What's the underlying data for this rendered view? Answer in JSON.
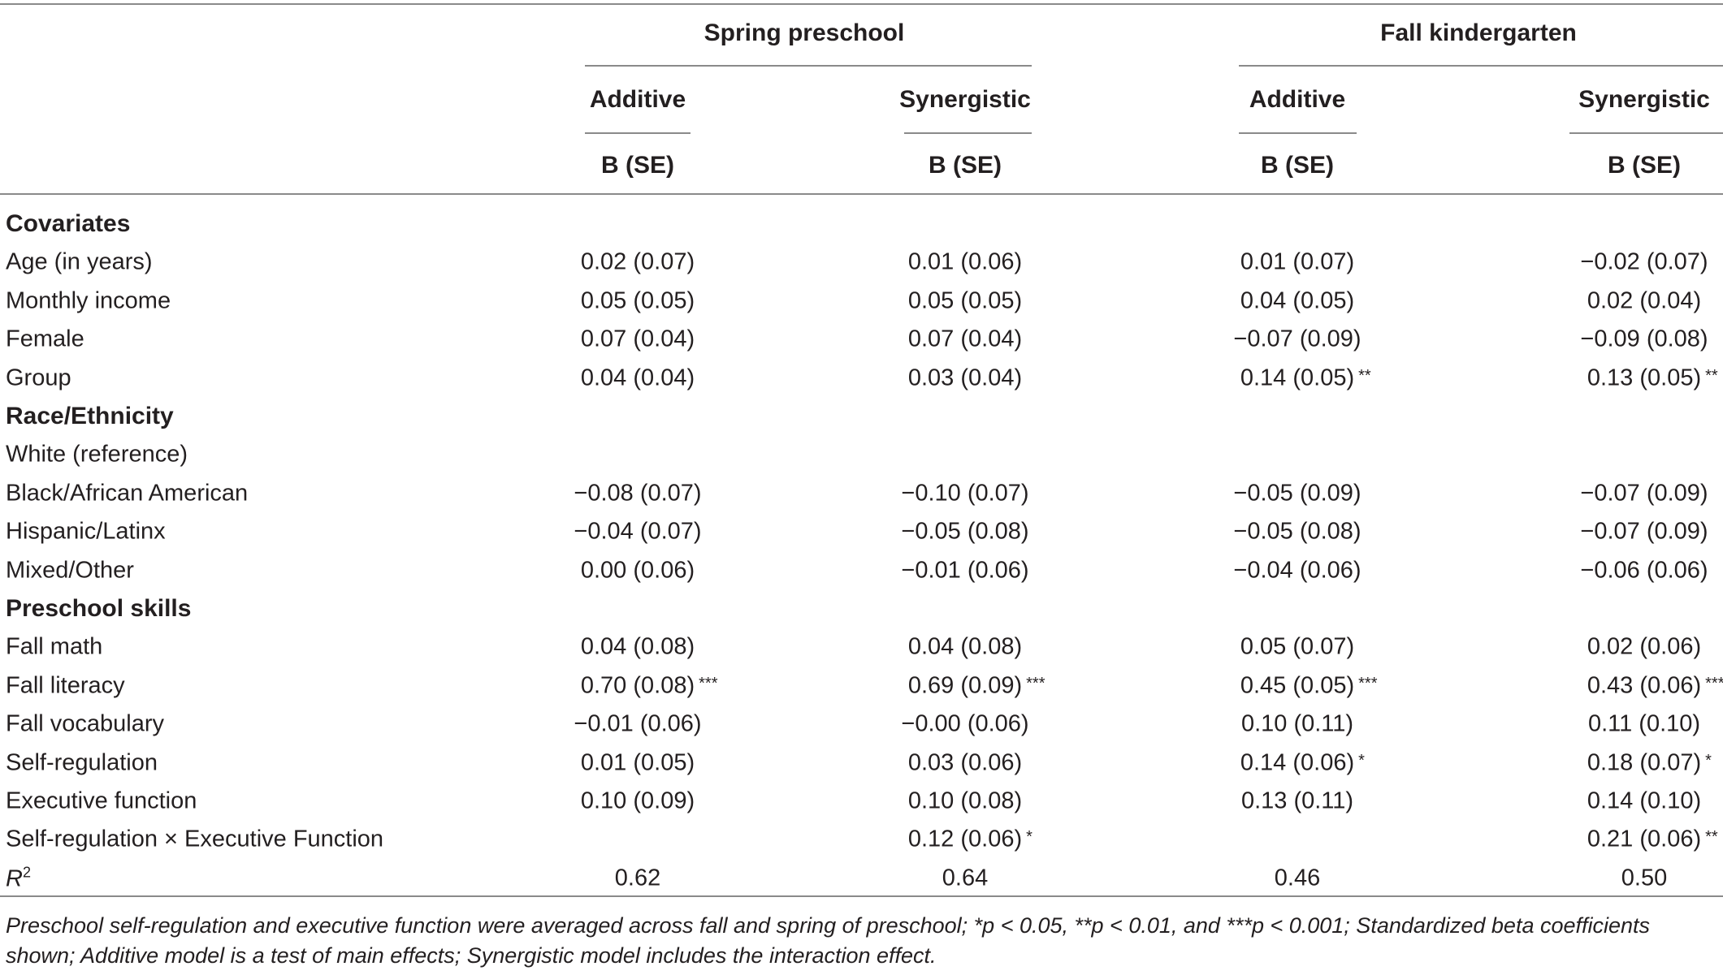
{
  "header": {
    "groups": [
      "Spring preschool",
      "Fall kindergarten"
    ],
    "models": [
      "Additive",
      "Synergistic",
      "Additive",
      "Synergistic"
    ],
    "stat": "B (SE)"
  },
  "rows": [
    {
      "type": "section",
      "label": "Covariates"
    },
    {
      "type": "data",
      "label": "Age (in years)",
      "cells": [
        {
          "v": "0.02 (0.07)",
          "s": ""
        },
        {
          "v": "0.01 (0.06)",
          "s": ""
        },
        {
          "v": "0.01 (0.07)",
          "s": ""
        },
        {
          "v": "−0.02 (0.07)",
          "s": ""
        }
      ]
    },
    {
      "type": "data",
      "label": "Monthly income",
      "cells": [
        {
          "v": "0.05 (0.05)",
          "s": ""
        },
        {
          "v": "0.05 (0.05)",
          "s": ""
        },
        {
          "v": "0.04 (0.05)",
          "s": ""
        },
        {
          "v": "0.02 (0.04)",
          "s": ""
        }
      ]
    },
    {
      "type": "data",
      "label": "Female",
      "cells": [
        {
          "v": "0.07 (0.04)",
          "s": ""
        },
        {
          "v": "0.07 (0.04)",
          "s": ""
        },
        {
          "v": "−0.07 (0.09)",
          "s": ""
        },
        {
          "v": "−0.09 (0.08)",
          "s": ""
        }
      ]
    },
    {
      "type": "data",
      "label": "Group",
      "cells": [
        {
          "v": "0.04 (0.04)",
          "s": ""
        },
        {
          "v": "0.03 (0.04)",
          "s": ""
        },
        {
          "v": "0.14 (0.05)",
          "s": "**"
        },
        {
          "v": "0.13 (0.05)",
          "s": "**"
        }
      ]
    },
    {
      "type": "section",
      "label": "Race/Ethnicity"
    },
    {
      "type": "data",
      "label": "White (reference)",
      "cells": [
        {
          "v": "",
          "s": ""
        },
        {
          "v": "",
          "s": ""
        },
        {
          "v": "",
          "s": ""
        },
        {
          "v": "",
          "s": ""
        }
      ]
    },
    {
      "type": "data",
      "label": "Black/African American",
      "cells": [
        {
          "v": "−0.08 (0.07)",
          "s": ""
        },
        {
          "v": "−0.10 (0.07)",
          "s": ""
        },
        {
          "v": "−0.05 (0.09)",
          "s": ""
        },
        {
          "v": "−0.07 (0.09)",
          "s": ""
        }
      ]
    },
    {
      "type": "data",
      "label": "Hispanic/Latinx",
      "cells": [
        {
          "v": "−0.04 (0.07)",
          "s": ""
        },
        {
          "v": "−0.05 (0.08)",
          "s": ""
        },
        {
          "v": "−0.05 (0.08)",
          "s": ""
        },
        {
          "v": "−0.07 (0.09)",
          "s": ""
        }
      ]
    },
    {
      "type": "data",
      "label": "Mixed/Other",
      "cells": [
        {
          "v": "0.00 (0.06)",
          "s": ""
        },
        {
          "v": "−0.01 (0.06)",
          "s": ""
        },
        {
          "v": "−0.04 (0.06)",
          "s": ""
        },
        {
          "v": "−0.06 (0.06)",
          "s": ""
        }
      ]
    },
    {
      "type": "section",
      "label": "Preschool skills"
    },
    {
      "type": "data",
      "label": "Fall math",
      "cells": [
        {
          "v": "0.04 (0.08)",
          "s": ""
        },
        {
          "v": "0.04 (0.08)",
          "s": ""
        },
        {
          "v": "0.05 (0.07)",
          "s": ""
        },
        {
          "v": "0.02 (0.06)",
          "s": ""
        }
      ]
    },
    {
      "type": "data",
      "label": "Fall literacy",
      "cells": [
        {
          "v": "0.70 (0.08)",
          "s": "***"
        },
        {
          "v": "0.69 (0.09)",
          "s": "***"
        },
        {
          "v": "0.45 (0.05)",
          "s": "***"
        },
        {
          "v": "0.43 (0.06)",
          "s": "***"
        }
      ]
    },
    {
      "type": "data",
      "label": "Fall vocabulary",
      "cells": [
        {
          "v": "−0.01 (0.06)",
          "s": ""
        },
        {
          "v": "−0.00 (0.06)",
          "s": ""
        },
        {
          "v": "0.10 (0.11)",
          "s": ""
        },
        {
          "v": "0.11 (0.10)",
          "s": ""
        }
      ]
    },
    {
      "type": "data",
      "label": "Self-regulation",
      "cells": [
        {
          "v": "0.01 (0.05)",
          "s": ""
        },
        {
          "v": "0.03 (0.06)",
          "s": ""
        },
        {
          "v": "0.14 (0.06)",
          "s": "*"
        },
        {
          "v": "0.18 (0.07)",
          "s": "*"
        }
      ]
    },
    {
      "type": "data",
      "label": "Executive function",
      "cells": [
        {
          "v": "0.10 (0.09)",
          "s": ""
        },
        {
          "v": "0.10 (0.08)",
          "s": ""
        },
        {
          "v": "0.13 (0.11)",
          "s": ""
        },
        {
          "v": "0.14 (0.10)",
          "s": ""
        }
      ]
    },
    {
      "type": "data",
      "label": "Self-regulation × Executive Function",
      "cells": [
        {
          "v": "",
          "s": ""
        },
        {
          "v": "0.12 (0.06)",
          "s": "*"
        },
        {
          "v": "",
          "s": ""
        },
        {
          "v": "0.21 (0.06)",
          "s": "**"
        }
      ]
    },
    {
      "type": "r2",
      "label_base": "R",
      "label_sup": "2",
      "cells": [
        {
          "v": "0.62",
          "s": ""
        },
        {
          "v": "0.64",
          "s": ""
        },
        {
          "v": "0.46",
          "s": ""
        },
        {
          "v": "0.50",
          "s": ""
        }
      ]
    }
  ],
  "note": "Preschool self-regulation and executive function were averaged across fall and spring of preschool; *p < 0.05, **p < 0.01, and ***p < 0.001; Standardized beta coefficients shown; Additive model is a test of main effects; Synergistic model includes the interaction effect."
}
